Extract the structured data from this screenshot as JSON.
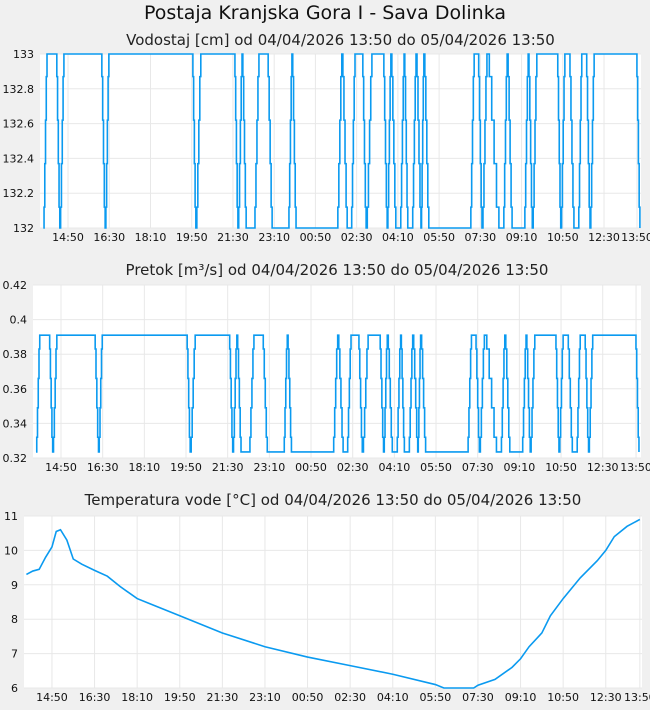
{
  "title": "Postaja Kranjska Gora I - Sava Dolinka",
  "chart_data": [
    {
      "type": "line",
      "title": "Vodostaj [cm] od 04/04/2026 13:50 do 05/04/2026 13:50",
      "xlabel": "",
      "ylabel": "",
      "x_units": "minutes since 04/04/2026 13:50",
      "xlim": [
        0,
        1440
      ],
      "ylim": [
        132,
        133
      ],
      "yticks": [
        132,
        132.2,
        132.4,
        132.6,
        132.8,
        133
      ],
      "ytick_labels": [
        "132",
        "132.2",
        "132.4",
        "132.6",
        "132.8",
        "133"
      ],
      "xticks": [
        60,
        160,
        260,
        360,
        460,
        560,
        660,
        760,
        860,
        960,
        1060,
        1160,
        1260,
        1360,
        1440
      ],
      "xtick_labels": [
        "14:50",
        "16:30",
        "18:10",
        "19:50",
        "21:30",
        "23:10",
        "00:50",
        "02:30",
        "04:10",
        "05:50",
        "07:30",
        "09:10",
        "10:50",
        "12:30",
        "13:50"
      ],
      "step_levels": [
        132,
        132.12,
        132.37,
        132.62,
        132.87,
        133
      ],
      "plateaus": [
        [
          0,
          0,
          0
        ],
        [
          9,
          31,
          1
        ],
        [
          40,
          40,
          0
        ],
        [
          50,
          140,
          1
        ],
        [
          150,
          150,
          0
        ],
        [
          159,
          361,
          1
        ],
        [
          370,
          370,
          0
        ],
        [
          382,
          463,
          1
        ],
        [
          472,
          472,
          0
        ],
        [
          482,
          482,
          1
        ],
        [
          492,
          511,
          0
        ],
        [
          523,
          543,
          1
        ],
        [
          555,
          594,
          0
        ],
        [
          603,
          603,
          1
        ],
        [
          613,
          712,
          0
        ],
        [
          724,
          724,
          1
        ],
        [
          737,
          746,
          0
        ],
        [
          756,
          773,
          1
        ],
        [
          783,
          783,
          0
        ],
        [
          797,
          824,
          1
        ],
        [
          834,
          834,
          0
        ],
        [
          843,
          843,
          1
        ],
        [
          855,
          865,
          0
        ],
        [
          875,
          875,
          1
        ],
        [
          884,
          894,
          0
        ],
        [
          904,
          904,
          1
        ],
        [
          916,
          916,
          0
        ],
        [
          923,
          923,
          1
        ],
        [
          935,
          1035,
          0
        ],
        [
          1045,
          1054,
          1
        ],
        [
          1064,
          1064,
          0
        ],
        [
          1076,
          1076,
          1
        ],
        [
          1105,
          1115,
          0
        ],
        [
          1125,
          1125,
          1
        ],
        [
          1137,
          1166,
          0
        ],
        [
          1176,
          1176,
          1
        ],
        [
          1186,
          1186,
          0
        ],
        [
          1197,
          1246,
          1
        ],
        [
          1255,
          1255,
          0
        ],
        [
          1265,
          1275,
          1
        ],
        [
          1287,
          1297,
          0
        ],
        [
          1306,
          1316,
          1
        ],
        [
          1326,
          1326,
          0
        ],
        [
          1336,
          1438,
          1
        ],
        [
          1447,
          1447,
          0
        ]
      ],
      "grid": true,
      "color": "#0a9af0"
    },
    {
      "type": "line",
      "title": "Pretok [m³/s] od 04/04/2026 13:50 do 05/04/2026 13:50",
      "xlabel": "",
      "ylabel": "",
      "x_units": "minutes since 04/04/2026 13:50",
      "xlim": [
        0,
        1440
      ],
      "ylim": [
        0.32,
        0.42
      ],
      "yticks": [
        0.32,
        0.34,
        0.36,
        0.38,
        0.4,
        0.42
      ],
      "ytick_labels": [
        "0.32",
        "0.34",
        "0.36",
        "0.38",
        "0.4",
        "0.42"
      ],
      "xticks": [
        60,
        160,
        260,
        360,
        460,
        560,
        660,
        760,
        860,
        960,
        1060,
        1160,
        1260,
        1360,
        1440
      ],
      "xtick_labels": [
        "14:50",
        "16:30",
        "18:10",
        "19:50",
        "21:30",
        "23:10",
        "00:50",
        "02:30",
        "04:10",
        "05:50",
        "07:30",
        "09:10",
        "10:50",
        "12:30",
        "13:50"
      ],
      "step_levels": [
        0.3235,
        0.332,
        0.349,
        0.366,
        0.383,
        0.391
      ],
      "plateaus": [
        [
          0,
          0,
          0
        ],
        [
          9,
          31,
          1
        ],
        [
          40,
          40,
          0
        ],
        [
          50,
          140,
          1
        ],
        [
          150,
          150,
          0
        ],
        [
          159,
          361,
          1
        ],
        [
          370,
          370,
          0
        ],
        [
          382,
          463,
          1
        ],
        [
          472,
          472,
          0
        ],
        [
          482,
          482,
          1
        ],
        [
          492,
          511,
          0
        ],
        [
          523,
          543,
          1
        ],
        [
          555,
          594,
          0
        ],
        [
          603,
          603,
          1
        ],
        [
          613,
          712,
          0
        ],
        [
          724,
          724,
          1
        ],
        [
          737,
          746,
          0
        ],
        [
          756,
          773,
          1
        ],
        [
          783,
          783,
          0
        ],
        [
          797,
          824,
          1
        ],
        [
          834,
          834,
          0
        ],
        [
          843,
          843,
          1
        ],
        [
          855,
          865,
          0
        ],
        [
          875,
          875,
          1
        ],
        [
          884,
          894,
          0
        ],
        [
          904,
          904,
          1
        ],
        [
          916,
          916,
          0
        ],
        [
          923,
          923,
          1
        ],
        [
          935,
          1035,
          0
        ],
        [
          1045,
          1054,
          1
        ],
        [
          1064,
          1064,
          0
        ],
        [
          1076,
          1076,
          1
        ],
        [
          1105,
          1115,
          0
        ],
        [
          1125,
          1125,
          1
        ],
        [
          1137,
          1166,
          0
        ],
        [
          1176,
          1176,
          1
        ],
        [
          1186,
          1186,
          0
        ],
        [
          1197,
          1246,
          1
        ],
        [
          1255,
          1255,
          0
        ],
        [
          1265,
          1275,
          1
        ],
        [
          1287,
          1297,
          0
        ],
        [
          1306,
          1316,
          1
        ],
        [
          1326,
          1326,
          0
        ],
        [
          1336,
          1438,
          1
        ],
        [
          1447,
          1447,
          0
        ]
      ],
      "grid": true,
      "color": "#0a9af0"
    },
    {
      "type": "line",
      "title": "Temperatura vode [°C] od 04/04/2026 13:50 do 05/04/2026 13:50",
      "xlabel": "",
      "ylabel": "",
      "x_units": "minutes since 04/04/2026 13:50",
      "xlim": [
        0,
        1440
      ],
      "ylim": [
        6,
        11
      ],
      "yticks": [
        6,
        7,
        8,
        9,
        10,
        11
      ],
      "ytick_labels": [
        "6",
        "7",
        "8",
        "9",
        "10",
        "11"
      ],
      "xticks": [
        60,
        160,
        260,
        360,
        460,
        560,
        660,
        760,
        860,
        960,
        1060,
        1160,
        1260,
        1360,
        1440
      ],
      "xtick_labels": [
        "14:50",
        "16:30",
        "18:10",
        "19:50",
        "21:30",
        "23:10",
        "00:50",
        "02:30",
        "04:10",
        "05:50",
        "07:30",
        "09:10",
        "10:50",
        "12:30",
        "13:50"
      ],
      "points": [
        [
          0,
          9.3
        ],
        [
          15,
          9.4
        ],
        [
          30,
          9.45
        ],
        [
          45,
          9.8
        ],
        [
          60,
          10.1
        ],
        [
          70,
          10.55
        ],
        [
          80,
          10.6
        ],
        [
          95,
          10.3
        ],
        [
          110,
          9.75
        ],
        [
          130,
          9.6
        ],
        [
          160,
          9.42
        ],
        [
          190,
          9.25
        ],
        [
          220,
          8.95
        ],
        [
          260,
          8.6
        ],
        [
          290,
          8.45
        ],
        [
          360,
          8.1
        ],
        [
          460,
          7.6
        ],
        [
          560,
          7.2
        ],
        [
          660,
          6.9
        ],
        [
          760,
          6.65
        ],
        [
          860,
          6.4
        ],
        [
          960,
          6.1
        ],
        [
          980,
          6.0
        ],
        [
          1050,
          6.0
        ],
        [
          1060,
          6.08
        ],
        [
          1100,
          6.25
        ],
        [
          1140,
          6.6
        ],
        [
          1160,
          6.85
        ],
        [
          1180,
          7.2
        ],
        [
          1210,
          7.6
        ],
        [
          1230,
          8.1
        ],
        [
          1260,
          8.6
        ],
        [
          1300,
          9.2
        ],
        [
          1340,
          9.7
        ],
        [
          1360,
          10.0
        ],
        [
          1380,
          10.4
        ],
        [
          1410,
          10.7
        ],
        [
          1440,
          10.9
        ]
      ],
      "grid": true,
      "color": "#0a9af0"
    }
  ]
}
